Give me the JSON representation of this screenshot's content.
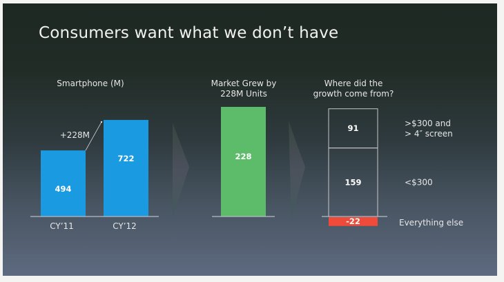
{
  "slide": {
    "title": "Consumers want what we don’t have"
  },
  "colors": {
    "blue_bar": "#1a9ae0",
    "green_bar": "#5cbc6a",
    "red_bar": "#ef4a3a",
    "box_outline": "#c9c9c9",
    "baseline": "#b8bcc4",
    "text": "#e6e6e6"
  },
  "chart_data": [
    {
      "type": "bar",
      "title": "Smartphone (M)",
      "categories": [
        "CY’11",
        "CY’12"
      ],
      "values": [
        494,
        722
      ],
      "annotation": "+228M",
      "ylim": [
        0,
        750
      ]
    },
    {
      "type": "bar",
      "title": "Market Grew by 228M Units",
      "title_lines": [
        "Market Grew by",
        "228M Units"
      ],
      "categories": [
        ""
      ],
      "values": [
        228
      ],
      "ylim": [
        0,
        250
      ]
    },
    {
      "type": "bar",
      "stacked": true,
      "title": "Where did the growth come from?",
      "title_lines": [
        "Where did the",
        "growth come from?"
      ],
      "series": [
        {
          "name": "Everything else",
          "value": -22
        },
        {
          "name": "<$300",
          "value": 159
        },
        {
          "name": ">$300 and > 4″ screen",
          "label_lines": [
            ">$300 and",
            "> 4″ screen"
          ],
          "value": 91
        }
      ],
      "ylim": [
        -22,
        250
      ]
    }
  ]
}
